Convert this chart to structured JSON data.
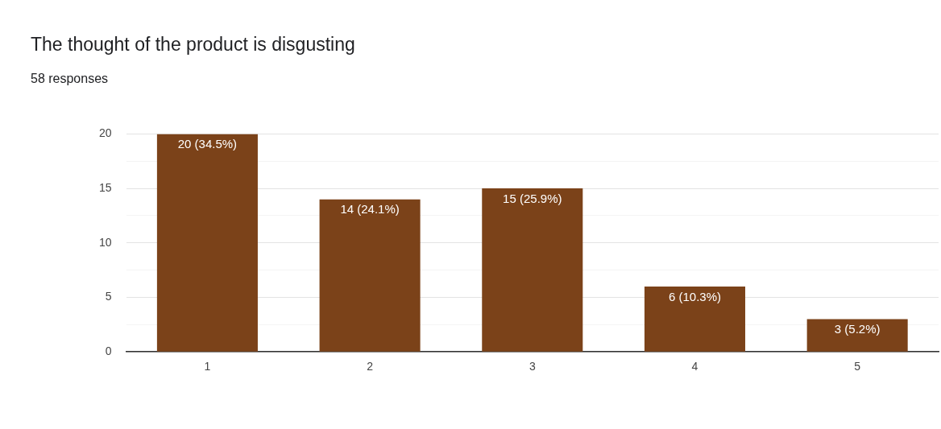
{
  "chart_data": {
    "type": "bar",
    "title": "The thought of the product is disgusting",
    "subtitle": "58 responses",
    "categories": [
      "1",
      "2",
      "3",
      "4",
      "5"
    ],
    "values": [
      20,
      14,
      15,
      6,
      3
    ],
    "value_labels": [
      "20 (34.5%)",
      "14 (24.1%)",
      "15 (25.9%)",
      "6 (10.3%)",
      "3 (5.2%)"
    ],
    "color": "#7b4219",
    "ylim": [
      0,
      20
    ],
    "yticks": [
      0,
      {
        "value": 2.5,
        "label": null
      },
      5,
      {
        "value": 7.5,
        "label": null
      },
      10,
      {
        "value": 12.5,
        "label": null
      },
      15,
      {
        "value": 17.5,
        "label": null
      },
      20
    ],
    "grid": "y",
    "legend": false
  }
}
